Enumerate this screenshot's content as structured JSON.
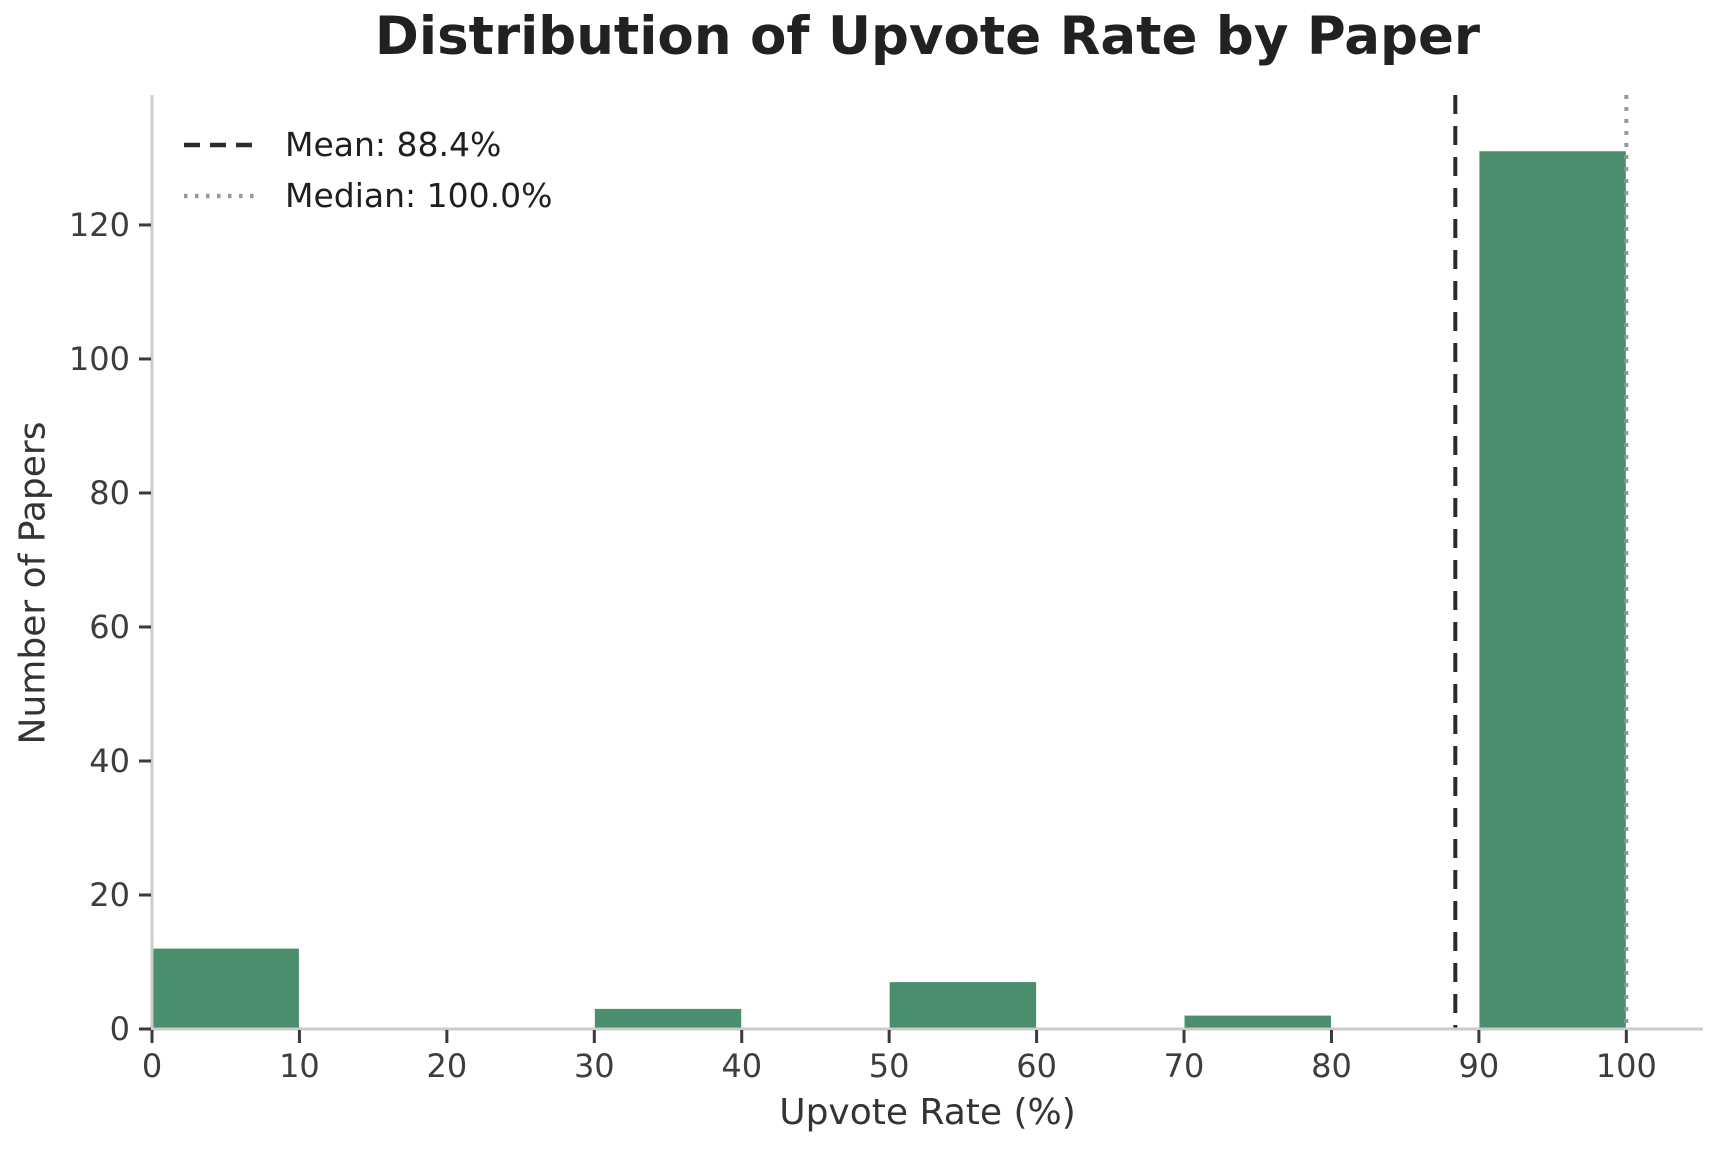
{
  "chart_data": {
    "type": "bar",
    "subtype": "histogram",
    "title": "Distribution of Upvote Rate by Paper",
    "xlabel": "Upvote Rate (%)",
    "ylabel": "Number of Papers",
    "bin_edges": [
      0,
      10,
      20,
      30,
      40,
      50,
      60,
      70,
      80,
      90,
      100
    ],
    "counts": [
      12,
      0,
      0,
      3,
      0,
      7,
      0,
      2,
      0,
      131
    ],
    "x_ticks": [
      0,
      10,
      20,
      30,
      40,
      50,
      60,
      70,
      80,
      90,
      100
    ],
    "y_ticks": [
      0,
      20,
      40,
      60,
      80,
      100,
      120
    ],
    "xlim": [
      0,
      105.2
    ],
    "ylim": [
      0,
      138.2
    ],
    "grid": false,
    "legend_position": "upper left",
    "bar_color": "#4a8e6e",
    "axis_line_color": "#cbcbcb",
    "tick_mark_color": "#3a3a3a",
    "tick_label_color": "#3d3d3d",
    "mean_line": {
      "value": 88.4,
      "label": "Mean: 88.4%",
      "color": "#2b2b2b",
      "style": "dashed"
    },
    "median_line": {
      "value": 100.0,
      "label": "Median: 100.0%",
      "color": "#999999",
      "style": "dotted"
    }
  }
}
